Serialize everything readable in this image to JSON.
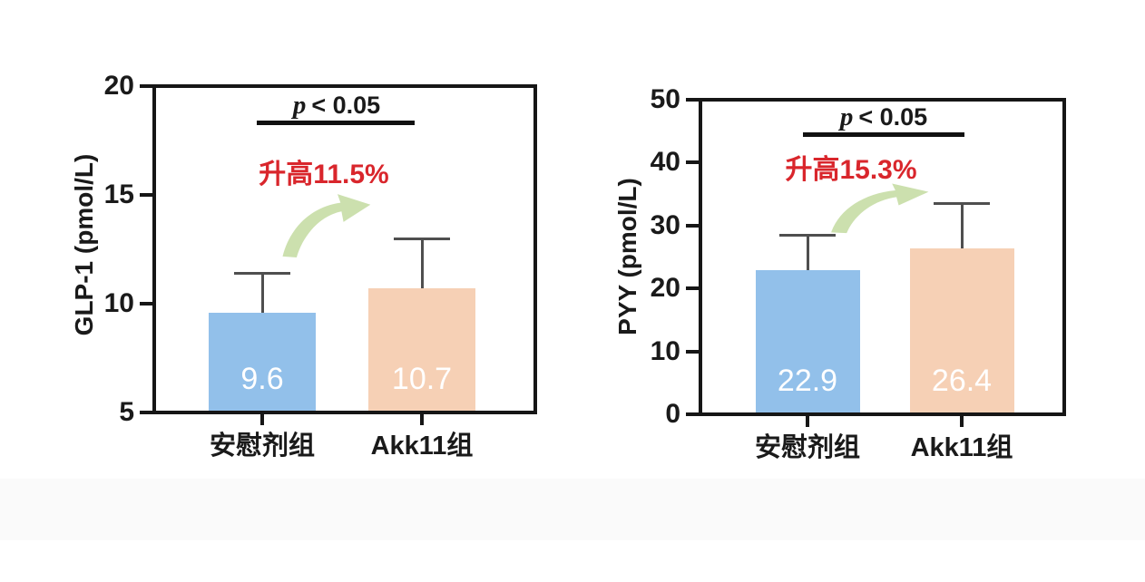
{
  "figure": {
    "kind": "two-panel bar figure",
    "background_color": "#ffffff",
    "axis_color": "#161616",
    "error_bar_color": "#4f4f4f"
  },
  "chart_data": [
    {
      "type": "bar",
      "title": "",
      "ylabel": "GLP-1 (pmol/L)",
      "xlabel": "",
      "categories": [
        "安慰剂组",
        "Akk11组"
      ],
      "values": [
        9.6,
        10.7
      ],
      "errors_upper": [
        1.8,
        2.3
      ],
      "error_tops": [
        11.4,
        13.0
      ],
      "ylim": [
        5,
        20
      ],
      "yticks": [
        5,
        10,
        15,
        20
      ],
      "grid": false,
      "legend": "none",
      "bar_colors": [
        "#92C0EA",
        "#F6D0B5"
      ],
      "value_label_color": "#ffffff",
      "p_italic": "p",
      "p_rest": "< 0.05",
      "annotation": "升高11.5%",
      "annotation_color": "#D9262C",
      "arrow_color": "#CCE0AE"
    },
    {
      "type": "bar",
      "title": "",
      "ylabel": "PYY (pmol/L)",
      "xlabel": "",
      "categories": [
        "安慰剂组",
        "Akk11组"
      ],
      "values": [
        22.9,
        26.4
      ],
      "errors_upper": [
        5.5,
        7.1
      ],
      "error_tops": [
        28.4,
        33.5
      ],
      "ylim": [
        0,
        50
      ],
      "yticks": [
        0,
        10,
        20,
        30,
        40,
        50
      ],
      "grid": false,
      "legend": "none",
      "bar_colors": [
        "#92C0EA",
        "#F6D0B5"
      ],
      "value_label_color": "#ffffff",
      "p_italic": "p",
      "p_rest": "< 0.05",
      "annotation": "升高15.3%",
      "annotation_color": "#D9262C",
      "arrow_color": "#CCE0AE"
    }
  ]
}
